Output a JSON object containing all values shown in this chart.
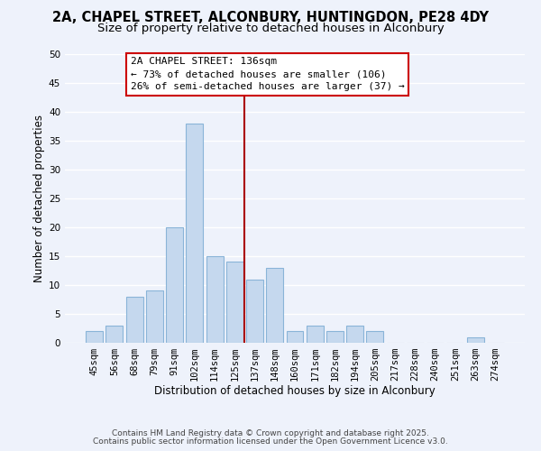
{
  "title1": "2A, CHAPEL STREET, ALCONBURY, HUNTINGDON, PE28 4DY",
  "title2": "Size of property relative to detached houses in Alconbury",
  "xlabel": "Distribution of detached houses by size in Alconbury",
  "ylabel": "Number of detached properties",
  "bar_labels": [
    "45sqm",
    "56sqm",
    "68sqm",
    "79sqm",
    "91sqm",
    "102sqm",
    "114sqm",
    "125sqm",
    "137sqm",
    "148sqm",
    "160sqm",
    "171sqm",
    "182sqm",
    "194sqm",
    "205sqm",
    "217sqm",
    "228sqm",
    "240sqm",
    "251sqm",
    "263sqm",
    "274sqm"
  ],
  "bar_values": [
    2,
    3,
    8,
    9,
    20,
    38,
    15,
    14,
    11,
    13,
    2,
    3,
    2,
    3,
    2,
    0,
    0,
    0,
    0,
    1,
    0
  ],
  "bar_color": "#c5d8ee",
  "bar_edge_color": "#8ab4d8",
  "vline_color": "#aa0000",
  "annotation_box_text": "2A CHAPEL STREET: 136sqm\n← 73% of detached houses are smaller (106)\n26% of semi-detached houses are larger (37) →",
  "annotation_box_color": "#cc0000",
  "ylim": [
    0,
    50
  ],
  "yticks": [
    0,
    5,
    10,
    15,
    20,
    25,
    30,
    35,
    40,
    45,
    50
  ],
  "bg_color": "#eef2fb",
  "grid_color": "#ffffff",
  "footer1": "Contains HM Land Registry data © Crown copyright and database right 2025.",
  "footer2": "Contains public sector information licensed under the Open Government Licence v3.0.",
  "title_fontsize": 10.5,
  "subtitle_fontsize": 9.5,
  "axis_label_fontsize": 8.5,
  "tick_fontsize": 7.5,
  "annotation_fontsize": 8,
  "footer_fontsize": 6.5
}
